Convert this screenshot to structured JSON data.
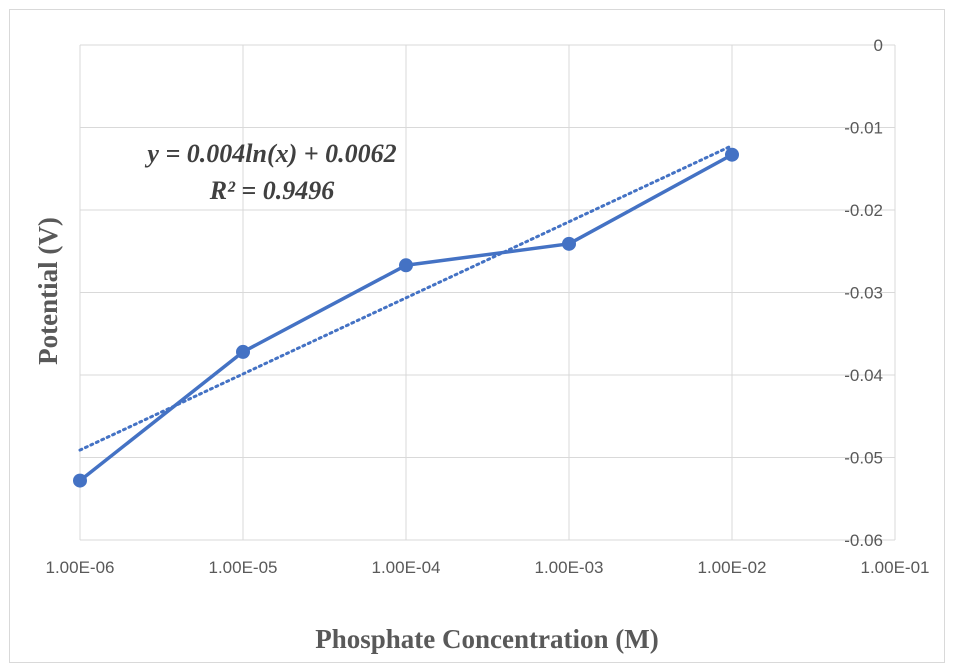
{
  "chart_data": {
    "type": "line",
    "xscale": "log",
    "x_tick_labels": [
      "1.00E-06",
      "1.00E-05",
      "1.00E-04",
      "1.00E-03",
      "1.00E-02",
      "1.00E-01"
    ],
    "y_tick_labels": [
      "0",
      "-0.01",
      "-0.02",
      "-0.03",
      "-0.04",
      "-0.05",
      "-0.06"
    ],
    "xlim": [
      1e-06,
      0.1
    ],
    "ylim": [
      -0.06,
      0
    ],
    "xlabel": "Phosphate Concentration (M)",
    "ylabel": "Potential (V)",
    "grid": true,
    "y_axis_position": "right",
    "series": [
      {
        "x": [
          1e-06,
          1e-05,
          0.0001,
          0.001,
          0.01
        ],
        "y": [
          -0.0528,
          -0.0372,
          -0.0267,
          -0.0241,
          -0.0133
        ],
        "color": "#4472C4",
        "marker": "circle"
      }
    ],
    "trendline": {
      "type": "logarithmic",
      "style": "dotted",
      "color": "#4472C4",
      "equation": "y = 0.004ln(x) + 0.0062",
      "r_squared": "R² = 0.9496",
      "x_range": [
        1e-06,
        0.01
      ],
      "y_range": [
        -0.0491,
        -0.0122
      ]
    }
  }
}
